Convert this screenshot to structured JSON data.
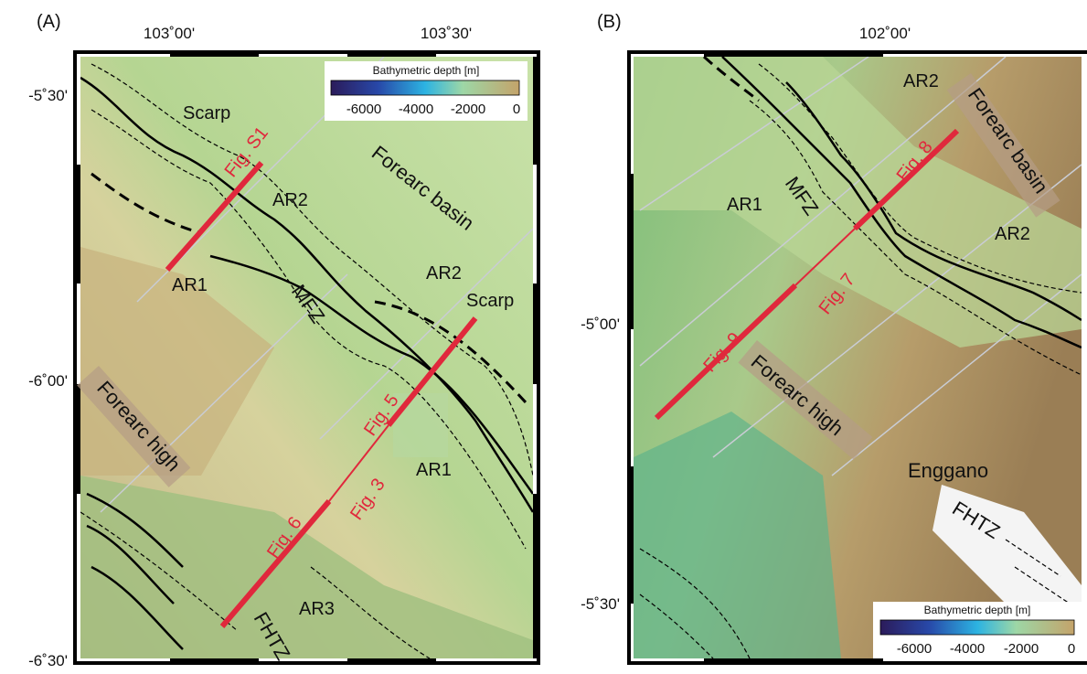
{
  "panels": [
    {
      "label": "(A)",
      "x_labels": [
        "103˚00'",
        "103˚30'"
      ],
      "y_labels": [
        "-5˚30'",
        "-6˚00'",
        "-6˚30'"
      ],
      "colorbar": {
        "title": "Bathymetric depth [m]",
        "ticks": [
          "-6000",
          "-4000",
          "-2000",
          "0"
        ]
      },
      "annotations": [
        "Scarp",
        "Fig. S1",
        "AR2",
        "Forearc basin",
        "AR1",
        "MFZ",
        "AR2",
        "Scarp",
        "Fig. 5",
        "Forearc high",
        "Fig. 3",
        "AR1",
        "Fig. 6",
        "AR3",
        "FHTZ"
      ]
    },
    {
      "label": "(B)",
      "x_labels": [
        "102˚00'"
      ],
      "y_labels": [
        "-5˚00'",
        "-5˚30'"
      ],
      "colorbar": {
        "title": "Bathymetric depth [m]",
        "ticks": [
          "-6000",
          "-4000",
          "-2000",
          "0"
        ]
      },
      "annotations": [
        "AR2",
        "Forearc basin",
        "Fig. 8",
        "AR1",
        "MFZ",
        "AR2",
        "Fig. 7",
        "Fig. 9",
        "Forearc high",
        "Enggano",
        "FHTZ"
      ]
    }
  ]
}
